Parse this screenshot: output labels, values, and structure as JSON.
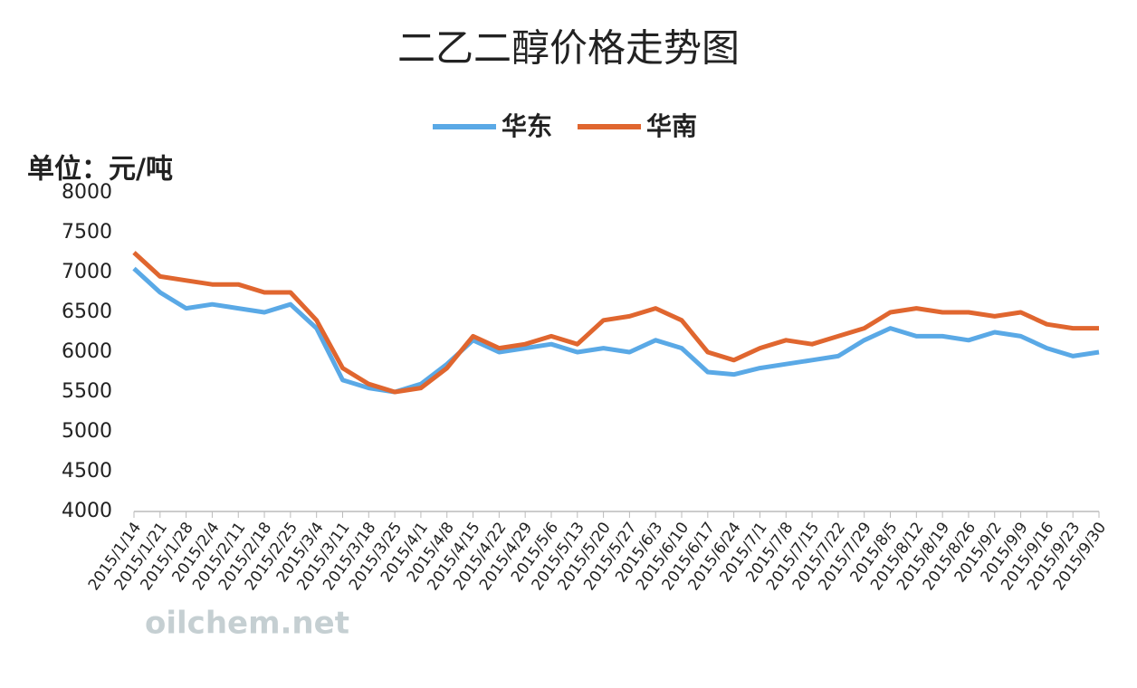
{
  "chart_data": {
    "type": "line",
    "title": "二乙二醇价格走势图",
    "y_label": "单位：元/吨",
    "watermark": "oilchem.net",
    "categories": [
      "2015/1/14",
      "2015/1/21",
      "2015/1/28",
      "2015/2/4",
      "2015/2/11",
      "2015/2/18",
      "2015/2/25",
      "2015/3/4",
      "2015/3/11",
      "2015/3/18",
      "2015/3/25",
      "2015/4/1",
      "2015/4/8",
      "2015/4/15",
      "2015/4/22",
      "2015/4/29",
      "2015/5/6",
      "2015/5/13",
      "2015/5/20",
      "2015/5/27",
      "2015/6/3",
      "2015/6/10",
      "2015/6/17",
      "2015/6/24",
      "2015/7/1",
      "2015/7/8",
      "2015/7/15",
      "2015/7/22",
      "2015/7/29",
      "2015/8/5",
      "2015/8/12",
      "2015/8/19",
      "2015/8/26",
      "2015/9/2",
      "2015/9/9",
      "2015/9/16",
      "2015/9/23",
      "2015/9/30"
    ],
    "series": [
      {
        "name": "华东",
        "color": "#5aa9e6",
        "values": [
          7050,
          6750,
          6550,
          6600,
          6550,
          6500,
          6600,
          6300,
          5650,
          5550,
          5500,
          5600,
          5850,
          6150,
          6000,
          6050,
          6100,
          6000,
          6050,
          6000,
          6150,
          6050,
          5750,
          5720,
          5800,
          5850,
          5900,
          5950,
          6150,
          6300,
          6200,
          6200,
          6150,
          6250,
          6200,
          6050,
          5950,
          6000
        ]
      },
      {
        "name": "华南",
        "color": "#e0662f",
        "values": [
          7250,
          6950,
          6900,
          6850,
          6850,
          6750,
          6750,
          6400,
          5800,
          5600,
          5500,
          5550,
          5800,
          6200,
          6050,
          6100,
          6200,
          6100,
          6400,
          6450,
          6550,
          6400,
          6000,
          5900,
          6050,
          6150,
          6100,
          6200,
          6300,
          6500,
          6550,
          6500,
          6500,
          6450,
          6500,
          6350,
          6300,
          6300
        ]
      }
    ],
    "ylim": [
      4000,
      8000
    ],
    "yticks": [
      4000,
      4500,
      5000,
      5500,
      6000,
      6500,
      7000,
      7500,
      8000
    ],
    "legend": "top",
    "grid": false
  }
}
